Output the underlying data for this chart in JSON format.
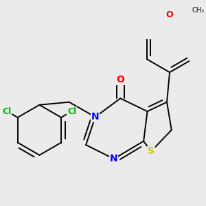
{
  "background_color": "#ebebeb",
  "bond_color": "#000000",
  "atom_colors": {
    "Cl": "#00bb00",
    "N": "#0000ff",
    "O": "#ff0000",
    "S": "#cccc00",
    "C": "#000000"
  },
  "bond_width": 1.4,
  "font_size": 10,
  "figsize": [
    3.0,
    3.0
  ],
  "dpi": 100
}
